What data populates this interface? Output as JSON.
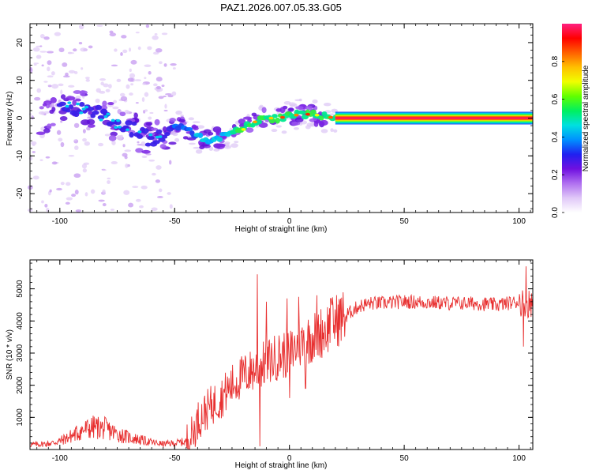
{
  "title": "PAZ1.2026.007.05.33.G05",
  "chart_data": [
    {
      "type": "heatmap",
      "name": "spectrogram",
      "xlabel": "Height of straight line (km)",
      "ylabel": "Frequency (Hz)",
      "xlim": [
        -113,
        106
      ],
      "ylim": [
        -25,
        25
      ],
      "xticks": [
        -100,
        -50,
        0,
        50,
        100
      ],
      "yticks": [
        -20,
        -10,
        0,
        10,
        20
      ],
      "ridge": [
        [
          -100,
          4
        ],
        [
          -95,
          3.5
        ],
        [
          -90,
          2
        ],
        [
          -85,
          1.5
        ],
        [
          -80,
          0
        ],
        [
          -75,
          -2
        ],
        [
          -70,
          -3
        ],
        [
          -65,
          -4
        ],
        [
          -60,
          -6
        ],
        [
          -55,
          -5
        ],
        [
          -50,
          -2
        ],
        [
          -45,
          -3
        ],
        [
          -40,
          -5
        ],
        [
          -35,
          -6
        ],
        [
          -30,
          -5
        ],
        [
          -25,
          -4
        ],
        [
          -20,
          -3
        ],
        [
          -15,
          -1
        ],
        [
          -10,
          0
        ],
        [
          -5,
          0
        ],
        [
          0,
          0.5
        ],
        [
          5,
          1
        ],
        [
          10,
          1
        ],
        [
          15,
          0.5
        ],
        [
          20,
          0
        ],
        [
          30,
          0
        ],
        [
          60,
          0
        ],
        [
          90,
          0
        ],
        [
          105,
          0
        ]
      ],
      "colorbar": {
        "label": "Normalized spectral amplitude",
        "range": [
          0,
          1
        ],
        "ticks": [
          "0.0",
          "0.2",
          "0.4",
          "0.6",
          "0.8"
        ],
        "colors": [
          "#ffffff",
          "#e0c8f8",
          "#b070f0",
          "#7010e0",
          "#2020f0",
          "#0090ff",
          "#00e0e0",
          "#00f060",
          "#60ff00",
          "#f0ff00",
          "#ffc000",
          "#ff6000",
          "#ff0000",
          "#ff2080"
        ]
      }
    },
    {
      "type": "line",
      "name": "snr",
      "xlabel": "Height of straight line (km)",
      "ylabel": "SNR (10 * v/v)",
      "xlim": [
        -113,
        106
      ],
      "ylim": [
        0,
        5900
      ],
      "xticks": [
        -100,
        -50,
        0,
        50,
        100
      ],
      "yticks": [
        1000,
        2000,
        3000,
        4000,
        5000
      ],
      "color": "#e83030",
      "envelope": [
        [
          -113,
          150
        ],
        [
          -105,
          180
        ],
        [
          -100,
          260
        ],
        [
          -95,
          420
        ],
        [
          -90,
          600
        ],
        [
          -85,
          700
        ],
        [
          -80,
          650
        ],
        [
          -75,
          480
        ],
        [
          -70,
          380
        ],
        [
          -65,
          300
        ],
        [
          -60,
          220
        ],
        [
          -55,
          170
        ],
        [
          -50,
          200
        ],
        [
          -45,
          250
        ],
        [
          -42,
          500
        ],
        [
          -40,
          900
        ],
        [
          -35,
          1300
        ],
        [
          -30,
          1600
        ],
        [
          -25,
          2000
        ],
        [
          -20,
          2300
        ],
        [
          -15,
          2500
        ],
        [
          -10,
          2700
        ],
        [
          -5,
          2900
        ],
        [
          0,
          3000
        ],
        [
          5,
          3300
        ],
        [
          10,
          3500
        ],
        [
          15,
          3700
        ],
        [
          20,
          4000
        ],
        [
          25,
          4200
        ],
        [
          30,
          4450
        ],
        [
          35,
          4550
        ],
        [
          40,
          4550
        ],
        [
          50,
          4600
        ],
        [
          60,
          4580
        ],
        [
          70,
          4550
        ],
        [
          80,
          4550
        ],
        [
          90,
          4500
        ],
        [
          95,
          4550
        ],
        [
          100,
          4600
        ],
        [
          106,
          4550
        ]
      ],
      "spikes": [
        [
          -14,
          5450
        ],
        [
          -13,
          100
        ],
        [
          -10,
          4600
        ],
        [
          -1,
          4700
        ],
        [
          0,
          1600
        ],
        [
          4,
          4750
        ],
        [
          7,
          1900
        ],
        [
          12,
          4800
        ],
        [
          18,
          4700
        ],
        [
          102,
          3200
        ],
        [
          103,
          5700
        ],
        [
          104,
          4100
        ]
      ]
    }
  ]
}
